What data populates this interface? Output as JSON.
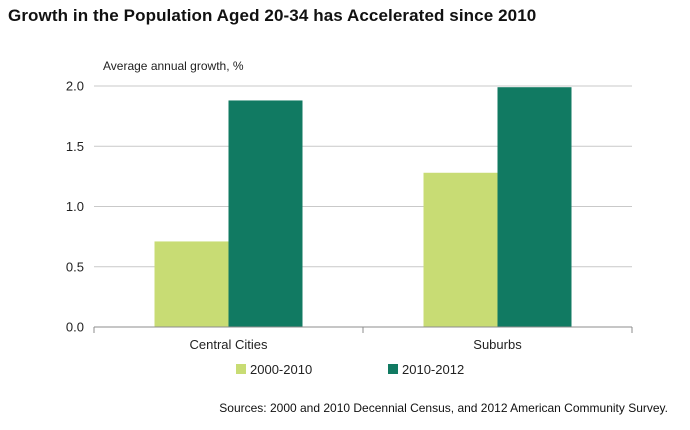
{
  "chart_data": {
    "type": "bar",
    "title": "Growth in the Population Aged 20-34 has Accelerated since 2010",
    "ylabel": "Average annual growth, %",
    "xlabel": "",
    "categories": [
      "Central Cities",
      "Suburbs"
    ],
    "series": [
      {
        "name": "2000-2010",
        "values": [
          0.71,
          1.28
        ],
        "color": "#c8dc74"
      },
      {
        "name": "2010-2012",
        "values": [
          1.88,
          1.99
        ],
        "color": "#117a62"
      }
    ],
    "ylim": [
      0,
      2.0
    ],
    "yticks": [
      0.0,
      0.5,
      1.0,
      1.5,
      2.0
    ],
    "ytick_labels": [
      "0.0",
      "0.5",
      "1.0",
      "1.5",
      "2.0"
    ],
    "grid": true,
    "legend_position": "bottom"
  },
  "source": "Sources: 2000 and 2010 Decennial Census, and 2012 American Community Survey."
}
